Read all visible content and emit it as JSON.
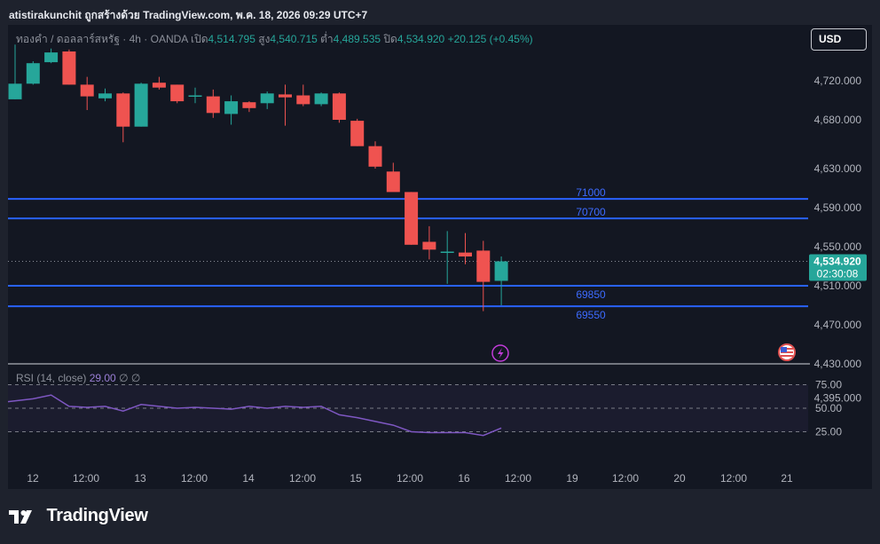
{
  "header": {
    "title": "atistirakunchit ถูกสร้างด้วย TradingView.com, พ.ค. 18, 2026 09:29 UTC+7"
  },
  "currency_button": {
    "label": "USD"
  },
  "legend": {
    "symbol": "ทองคำ / ดอลลาร์สหรัฐ · 4h · OANDA",
    "open_label": "เปิด",
    "open": "4,514.795",
    "high_label": "สูง",
    "high": "4,540.715",
    "low_label": "ต่ำ",
    "low": "4,489.535",
    "close_label": "ปิด",
    "close": "4,534.920",
    "change": "+20.125 (+0.45%)"
  },
  "rsi_legend": {
    "label": "RSI (14, close)",
    "value": "29.00",
    "extra1": "∅",
    "extra2": "∅"
  },
  "colors": {
    "up": "#26a69a",
    "down": "#ef5350",
    "level": "#2962ff",
    "rsi": "#7e57c2",
    "background": "#131722"
  },
  "footer": {
    "brand": "TradingView"
  },
  "chart_data": {
    "type": "candlestick",
    "title": "ทองคำ / ดอลลาร์สหรัฐ · 4h · OANDA",
    "price_axis_ticks": [
      4720,
      4680,
      4630,
      4590,
      4550,
      4510,
      4470,
      4430,
      4395
    ],
    "price_axis_labels": [
      "4,720.000",
      "4,680.000",
      "4,630.000",
      "4,590.000",
      "4,550.000",
      "4,510.000",
      "4,470.000",
      "4,430.000",
      "4,395.000"
    ],
    "time_axis_labels": [
      "12",
      "12:00",
      "13",
      "12:00",
      "14",
      "12:00",
      "15",
      "12:00",
      "16",
      "12:00",
      "19",
      "12:00",
      "20",
      "12:00",
      "21"
    ],
    "current_price": "4,534.920",
    "countdown": "02:30:08",
    "levels": [
      {
        "label": "71000",
        "price": 4599
      },
      {
        "label": "70700",
        "price": 4579
      },
      {
        "label": "69850",
        "price": 4510
      },
      {
        "label": "69550",
        "price": 4489
      }
    ],
    "candles": [
      {
        "o": 4701,
        "h": 4757,
        "l": 4701,
        "c": 4717
      },
      {
        "o": 4717,
        "h": 4740,
        "l": 4716,
        "c": 4738
      },
      {
        "o": 4739,
        "h": 4753,
        "l": 4738,
        "c": 4749
      },
      {
        "o": 4750,
        "h": 4752,
        "l": 4716,
        "c": 4716
      },
      {
        "o": 4716,
        "h": 4724,
        "l": 4690,
        "c": 4704
      },
      {
        "o": 4702,
        "h": 4712,
        "l": 4699,
        "c": 4707
      },
      {
        "o": 4707,
        "h": 4708,
        "l": 4657,
        "c": 4673
      },
      {
        "o": 4673,
        "h": 4718,
        "l": 4673,
        "c": 4717
      },
      {
        "o": 4718,
        "h": 4724,
        "l": 4711,
        "c": 4713
      },
      {
        "o": 4716,
        "h": 4716,
        "l": 4697,
        "c": 4699
      },
      {
        "o": 4704,
        "h": 4713,
        "l": 4697,
        "c": 4705
      },
      {
        "o": 4704,
        "h": 4711,
        "l": 4682,
        "c": 4687
      },
      {
        "o": 4686,
        "h": 4705,
        "l": 4675,
        "c": 4699
      },
      {
        "o": 4698,
        "h": 4699,
        "l": 4688,
        "c": 4692
      },
      {
        "o": 4697,
        "h": 4709,
        "l": 4691,
        "c": 4707
      },
      {
        "o": 4706,
        "h": 4716,
        "l": 4674,
        "c": 4703
      },
      {
        "o": 4705,
        "h": 4716,
        "l": 4694,
        "c": 4696
      },
      {
        "o": 4696,
        "h": 4708,
        "l": 4694,
        "c": 4707
      },
      {
        "o": 4707,
        "h": 4708,
        "l": 4677,
        "c": 4680
      },
      {
        "o": 4679,
        "h": 4681,
        "l": 4653,
        "c": 4653
      },
      {
        "o": 4653,
        "h": 4658,
        "l": 4630,
        "c": 4632
      },
      {
        "o": 4627,
        "h": 4636,
        "l": 4608,
        "c": 4606
      },
      {
        "o": 4606,
        "h": 4606,
        "l": 4552,
        "c": 4552
      },
      {
        "o": 4555,
        "h": 4571,
        "l": 4537,
        "c": 4547
      },
      {
        "o": 4545,
        "h": 4566,
        "l": 4512,
        "c": 4545
      },
      {
        "o": 4544,
        "h": 4564,
        "l": 4532,
        "c": 4540
      },
      {
        "o": 4546,
        "h": 4556,
        "l": 4484,
        "c": 4514
      },
      {
        "o": 4515,
        "h": 4540,
        "l": 4490,
        "c": 4535
      }
    ],
    "rsi": {
      "ticks": [
        75,
        50,
        25
      ],
      "tick_labels": [
        "75.00",
        "50.00",
        "25.00"
      ],
      "values": [
        57,
        60,
        64,
        52,
        51,
        52,
        47,
        54,
        52,
        50,
        51,
        50,
        49,
        52,
        50,
        52,
        51,
        52,
        43,
        40,
        36,
        32,
        25,
        24,
        24,
        24,
        21,
        29
      ]
    }
  }
}
